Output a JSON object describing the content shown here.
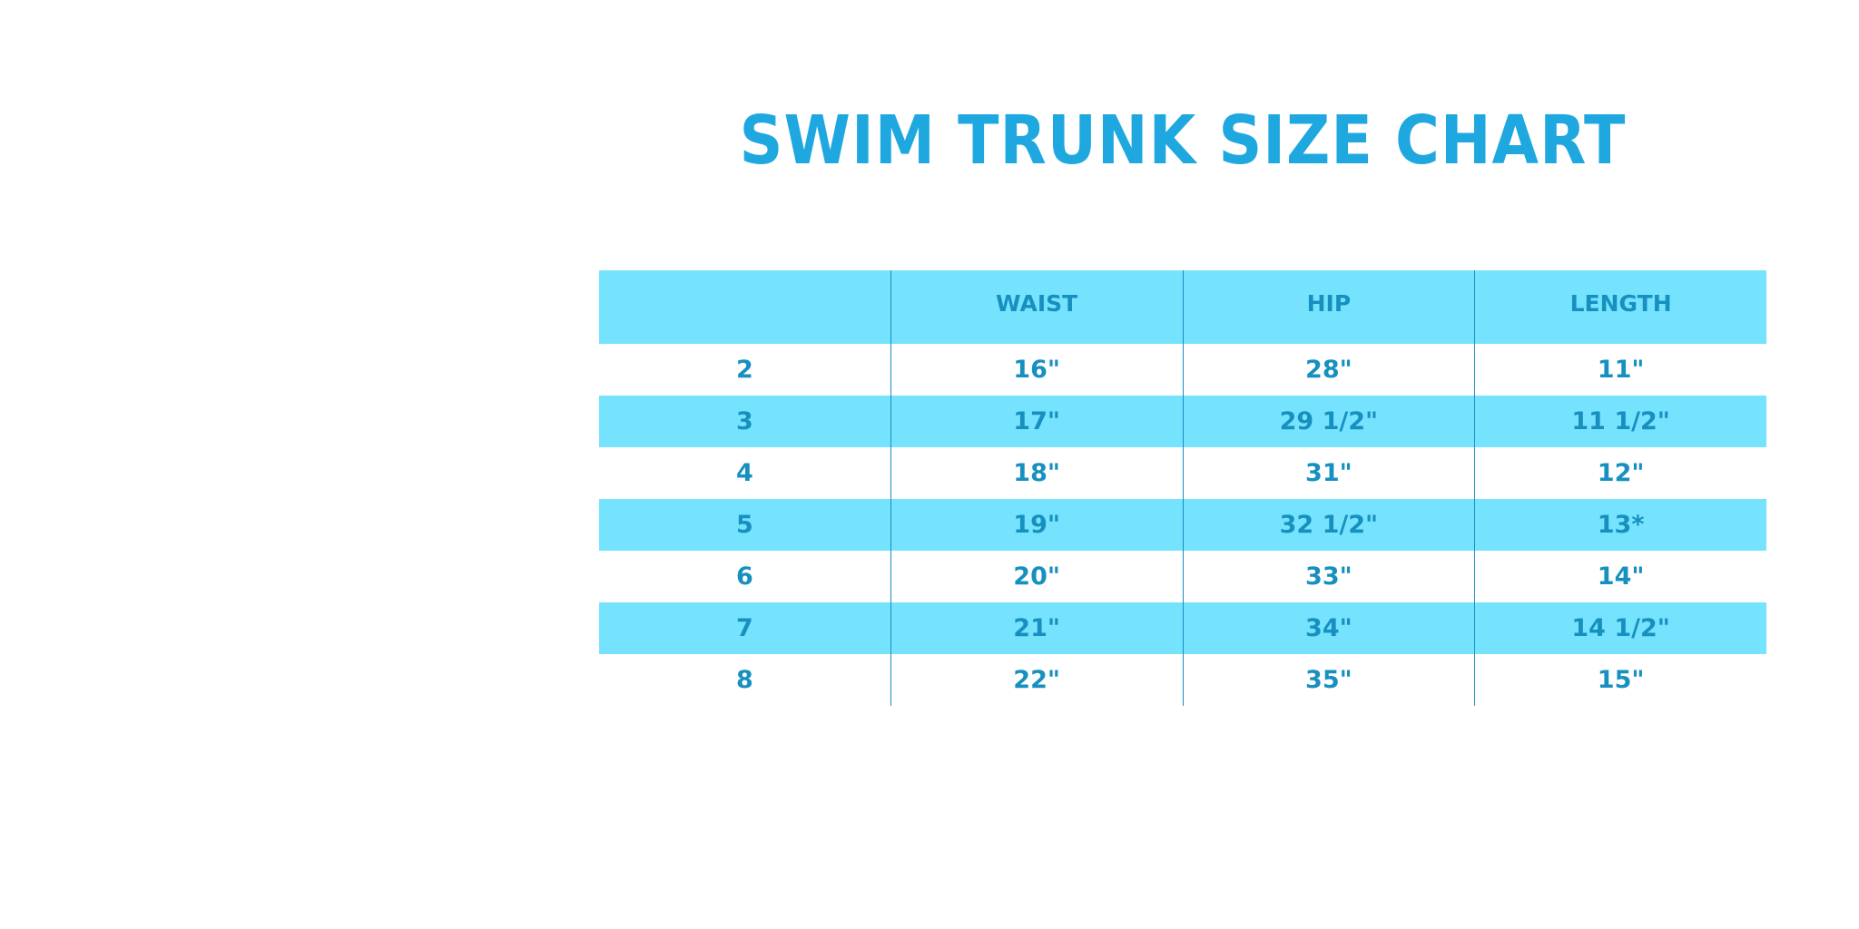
{
  "title": "SWIM TRUNK SIZE CHART",
  "table": {
    "headers": [
      "",
      "WAIST",
      "HIP",
      "LENGTH"
    ],
    "rows": [
      [
        "2",
        "16\"",
        "28\"",
        "11\""
      ],
      [
        "3",
        "17\"",
        "29 1/2\"",
        "11 1/2\""
      ],
      [
        "4",
        "18\"",
        "31\"",
        "12\""
      ],
      [
        "5",
        "19\"",
        "32 1/2\"",
        "13*"
      ],
      [
        "6",
        "20\"",
        "33\"",
        "14\""
      ],
      [
        "7",
        "21\"",
        "34\"",
        "14 1/2\""
      ],
      [
        "8",
        "22\"",
        "35\"",
        "15\""
      ]
    ]
  },
  "colors": {
    "title": "#1fa8df",
    "text": "#1790c0",
    "shade": "#75e3fe"
  }
}
